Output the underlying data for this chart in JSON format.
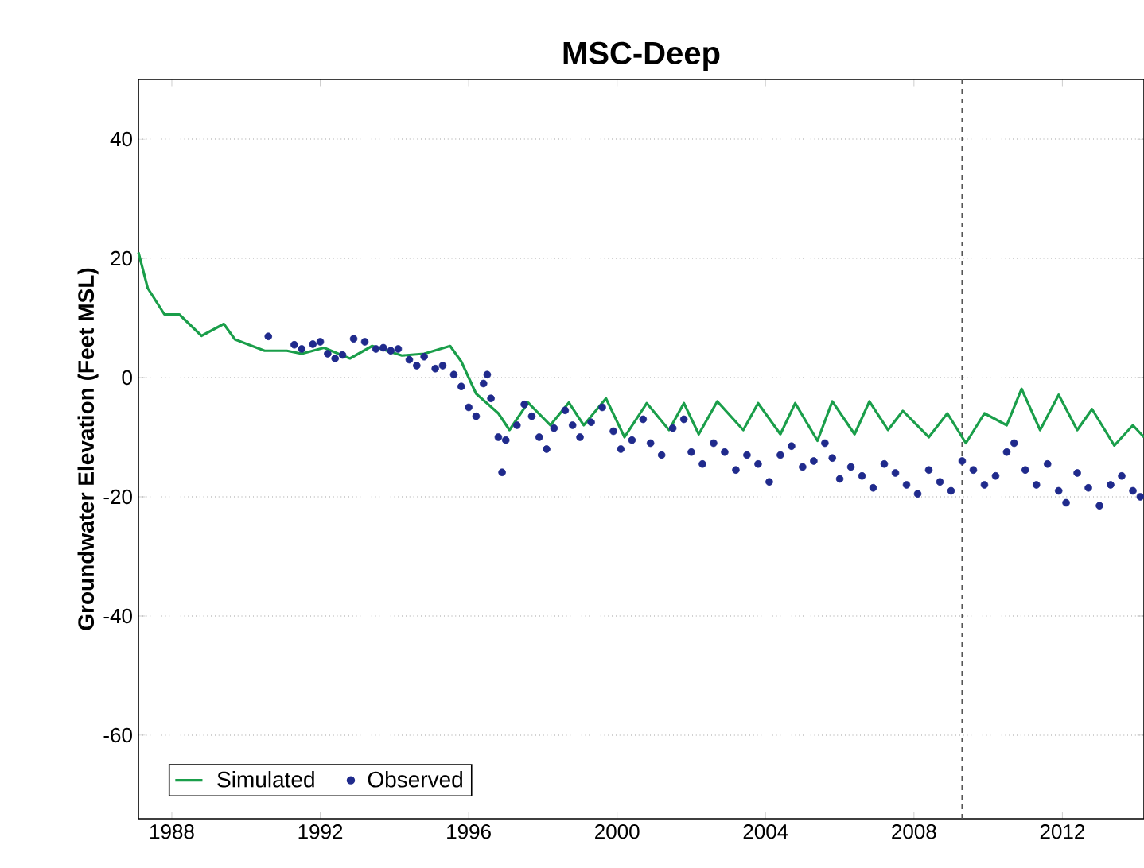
{
  "chart_data": {
    "type": "line",
    "title": "MSC-Deep",
    "ylabel": "Groundwater Elevation (Feet MSL)",
    "xlim": [
      1987.1,
      2014.2
    ],
    "ylim": [
      -74,
      50
    ],
    "xticks": [
      1988,
      1992,
      1996,
      2000,
      2004,
      2008,
      2012
    ],
    "yticks": [
      -60,
      -40,
      -20,
      0,
      20,
      40
    ],
    "grid": "y",
    "legend": "bottom left",
    "ref_lines": [
      {
        "axis": "x",
        "value": 2009.3,
        "color": "#555555",
        "line_style": "dashed"
      }
    ],
    "series": [
      {
        "name": "Simulated",
        "color": "#1a9e4a",
        "line_style": "solid",
        "x": [
          1987.1,
          1987.35,
          1987.8,
          1988.2,
          1988.8,
          1989.4,
          1989.7,
          1990.5,
          1991.1,
          1991.5,
          1992.1,
          1992.8,
          1993.4,
          1994.2,
          1994.8,
          1995.5,
          1995.8,
          1996.2,
          1996.8,
          1997.1,
          1997.6,
          1998.2,
          1998.7,
          1999.1,
          1999.7,
          2000.2,
          2000.8,
          2001.4,
          2001.8,
          2002.2,
          2002.7,
          2003.4,
          2003.8,
          2004.4,
          2004.8,
          2005.4,
          2005.8,
          2006.4,
          2006.8,
          2007.3,
          2007.7,
          2008.4,
          2008.9,
          2009.4,
          2009.9,
          2010.5,
          2010.9,
          2011.4,
          2011.9,
          2012.4,
          2012.8,
          2013.4,
          2013.9,
          2014.2
        ],
        "values": [
          21,
          15,
          10.6,
          10.6,
          7,
          9,
          6.4,
          4.5,
          4.5,
          4,
          5,
          3.2,
          5.3,
          3.7,
          4,
          5.3,
          2.7,
          -2.7,
          -6,
          -8.8,
          -4.2,
          -8,
          -4.2,
          -8,
          -3.5,
          -10,
          -4.3,
          -8.8,
          -4.3,
          -9.5,
          -4,
          -8.8,
          -4.3,
          -9.5,
          -4.3,
          -10.6,
          -4,
          -9.5,
          -4,
          -8.8,
          -5.6,
          -10,
          -6,
          -11,
          -6,
          -8,
          -1.9,
          -8.8,
          -2.9,
          -8.8,
          -5.3,
          -11.4,
          -8,
          -10
        ]
      },
      {
        "name": "Observed",
        "type": "scatter",
        "color": "#1f2a8c",
        "marker": "circle",
        "x": [
          1990.6,
          1991.3,
          1991.5,
          1991.8,
          1992.0,
          1992.2,
          1992.4,
          1992.6,
          1992.9,
          1993.2,
          1993.5,
          1993.7,
          1993.9,
          1994.1,
          1994.4,
          1994.6,
          1994.8,
          1995.1,
          1995.3,
          1995.6,
          1995.8,
          1996.0,
          1996.2,
          1996.4,
          1996.5,
          1996.6,
          1996.8,
          1996.9,
          1997.0,
          1997.3,
          1997.5,
          1997.7,
          1997.9,
          1998.1,
          1998.3,
          1998.6,
          1998.8,
          1999.0,
          1999.3,
          1999.6,
          1999.9,
          2000.1,
          2000.4,
          2000.7,
          2000.9,
          2001.2,
          2001.5,
          2001.8,
          2002.0,
          2002.3,
          2002.6,
          2002.9,
          2003.2,
          2003.5,
          2003.8,
          2004.1,
          2004.4,
          2004.7,
          2005.0,
          2005.3,
          2005.6,
          2005.8,
          2006.0,
          2006.3,
          2006.6,
          2006.9,
          2007.2,
          2007.5,
          2007.8,
          2008.1,
          2008.4,
          2008.7,
          2009.0,
          2009.3,
          2009.6,
          2009.9,
          2010.2,
          2010.5,
          2010.7,
          2011.0,
          2011.3,
          2011.6,
          2011.9,
          2012.1,
          2012.4,
          2012.7,
          2013.0,
          2013.3,
          2013.6,
          2013.9,
          2014.1
        ],
        "values": [
          6.9,
          5.5,
          4.8,
          5.6,
          6.0,
          4.0,
          3.2,
          3.8,
          6.5,
          6.0,
          4.8,
          5.0,
          4.5,
          4.8,
          3.0,
          2.0,
          3.5,
          1.5,
          2.0,
          0.5,
          -1.5,
          -5.0,
          -6.5,
          -1.0,
          0.5,
          -3.5,
          -10.0,
          -15.9,
          -10.5,
          -8.0,
          -4.5,
          -6.5,
          -10.0,
          -12.0,
          -8.5,
          -5.5,
          -8.0,
          -10.0,
          -7.5,
          -5.0,
          -9.0,
          -12.0,
          -10.5,
          -7.0,
          -11.0,
          -13.0,
          -8.5,
          -7.0,
          -12.5,
          -14.5,
          -11.0,
          -12.5,
          -15.5,
          -13.0,
          -14.5,
          -17.5,
          -13.0,
          -11.5,
          -15.0,
          -14.0,
          -11.0,
          -13.5,
          -17.0,
          -15.0,
          -16.5,
          -18.5,
          -14.5,
          -16.0,
          -18.0,
          -19.5,
          -15.5,
          -17.5,
          -19.0,
          -14.0,
          -15.5,
          -18.0,
          -16.5,
          -12.5,
          -11.0,
          -15.5,
          -18.0,
          -14.5,
          -19.0,
          -21.0,
          -16.0,
          -18.5,
          -21.5,
          -18.0,
          -16.5,
          -19.0,
          -20.0
        ]
      }
    ]
  }
}
